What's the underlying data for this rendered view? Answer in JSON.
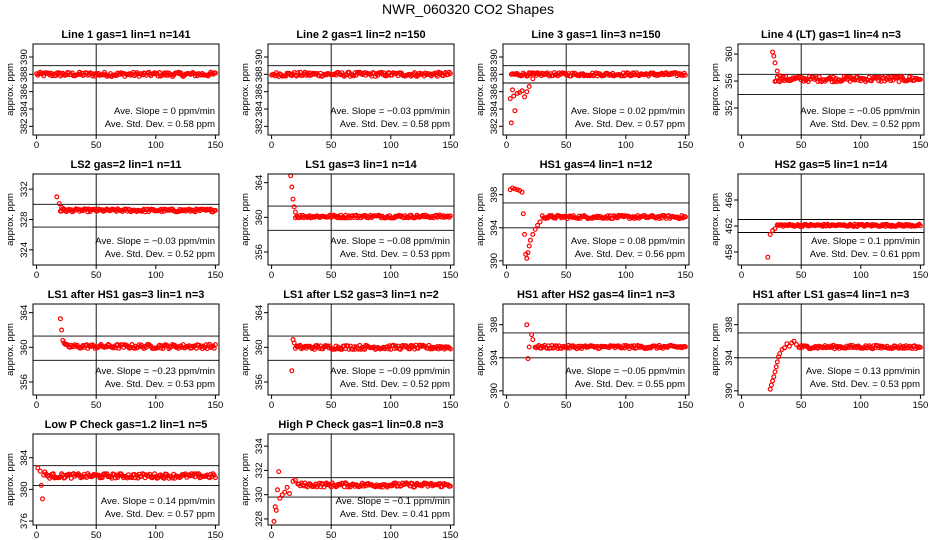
{
  "figure": {
    "title": "NWR_060320  CO2 Shapes"
  },
  "chart_data": [
    {
      "type": "scatter",
      "title": "Line 1 gas=1 lin=1 n=141",
      "ylabel": "approx. ppm",
      "xlim": [
        -3,
        153
      ],
      "ylim": [
        381,
        391.5
      ],
      "xticks": [
        0,
        50,
        100,
        150
      ],
      "yticks": [
        382,
        384,
        386,
        388,
        390
      ],
      "band": [
        387,
        389
      ],
      "vline": 50,
      "slope_text": "Ave. Slope =  0  ppm/min",
      "sd_text": "Ave. Std. Dev. =  0.58  ppm",
      "x_range": [
        0,
        150
      ],
      "level": 388,
      "initial": [],
      "noise": 0.25
    },
    {
      "type": "scatter",
      "title": "Line 2 gas=1 lin=2 n=150",
      "ylabel": "approx. ppm",
      "xlim": [
        -3,
        153
      ],
      "ylim": [
        381,
        391.5
      ],
      "xticks": [
        0,
        50,
        100,
        150
      ],
      "yticks": [
        382,
        384,
        386,
        388,
        390
      ],
      "band": [
        387,
        389
      ],
      "vline": 50,
      "slope_text": "Ave. Slope = −0.03  ppm/min",
      "sd_text": "Ave. Std. Dev. =  0.58  ppm",
      "x_range": [
        0,
        150
      ],
      "level": 388,
      "initial": [],
      "noise": 0.25
    },
    {
      "type": "scatter",
      "title": "Line 3 gas=1 lin=3 n=150",
      "ylabel": "approx. ppm",
      "xlim": [
        -3,
        153
      ],
      "ylim": [
        381,
        391.5
      ],
      "xticks": [
        0,
        50,
        100,
        150
      ],
      "yticks": [
        382,
        384,
        386,
        388,
        390
      ],
      "band": [
        387,
        389
      ],
      "vline": 50,
      "slope_text": "Ave. Slope =  0.02  ppm/min",
      "sd_text": "Ave. Std. Dev. =  0.57  ppm",
      "x_range": [
        4,
        150
      ],
      "level": 388,
      "initial": [
        [
          3,
          385.2
        ],
        [
          4,
          382.4
        ],
        [
          5,
          386.2
        ],
        [
          6,
          385.5
        ],
        [
          7,
          383.8
        ],
        [
          9,
          385.8
        ],
        [
          11,
          385.9
        ],
        [
          13,
          386.1
        ],
        [
          15,
          385.4
        ],
        [
          17,
          386.0
        ],
        [
          19,
          386.6
        ],
        [
          22,
          387.5
        ],
        [
          25,
          387.9
        ]
      ],
      "noise": 0.2
    },
    {
      "type": "scatter",
      "title": "Line 4 (LT) gas=1 lin=4 n=3",
      "ylabel": "approx. ppm",
      "xlim": [
        -3,
        153
      ],
      "ylim": [
        348,
        361.5
      ],
      "xticks": [
        0,
        50,
        100,
        150
      ],
      "yticks": [
        352,
        356,
        360
      ],
      "band": [
        354,
        357
      ],
      "vline": 50,
      "slope_text": "Ave. Slope = −0.05  ppm/min",
      "sd_text": "Ave. Std. Dev. =  0.52  ppm",
      "x_range": [
        28,
        150
      ],
      "level": 356.3,
      "initial": [
        [
          26,
          360.3
        ],
        [
          27,
          359.7
        ],
        [
          28,
          358.7
        ],
        [
          30,
          357.5
        ],
        [
          32,
          356.8
        ]
      ],
      "noise": 0.4
    },
    {
      "type": "scatter",
      "title": "LS2 gas=2 lin=1 n=11",
      "ylabel": "approx. ppm",
      "xlim": [
        -3,
        153
      ],
      "ylim": [
        322,
        334
      ],
      "xticks": [
        0,
        50,
        100,
        150
      ],
      "yticks": [
        324,
        328,
        332
      ],
      "band": [
        327,
        330
      ],
      "vline": 50,
      "slope_text": "Ave. Slope = −0.03  ppm/min",
      "sd_text": "Ave. Std. Dev. =  0.52  ppm",
      "x_range": [
        20,
        150
      ],
      "level": 329.2,
      "initial": [
        [
          17,
          331.0
        ],
        [
          19,
          330.1
        ],
        [
          21,
          329.6
        ],
        [
          23,
          329.4
        ]
      ],
      "noise": 0.2
    },
    {
      "type": "scatter",
      "title": "LS1 gas=3 lin=1 n=14",
      "ylabel": "approx. ppm",
      "xlim": [
        -3,
        153
      ],
      "ylim": [
        354.5,
        365
      ],
      "xticks": [
        0,
        50,
        100,
        150
      ],
      "yticks": [
        356,
        360,
        364
      ],
      "band": [
        358.5,
        361.3
      ],
      "vline": 50,
      "slope_text": "Ave. Slope = −0.08  ppm/min",
      "sd_text": "Ave. Std. Dev. =  0.53  ppm",
      "x_range": [
        20,
        150
      ],
      "level": 360.1,
      "initial": [
        [
          16,
          364.8
        ],
        [
          17,
          363.5
        ],
        [
          18,
          362.1
        ],
        [
          19,
          361.2
        ],
        [
          20,
          360.6
        ]
      ],
      "noise": 0.18
    },
    {
      "type": "scatter",
      "title": "HS1 gas=4 lin=1 n=12",
      "ylabel": "approx. ppm",
      "xlim": [
        -3,
        153
      ],
      "ylim": [
        389.5,
        400.5
      ],
      "xticks": [
        0,
        50,
        100,
        150
      ],
      "yticks": [
        390,
        394,
        398
      ],
      "band": [
        394,
        397
      ],
      "vline": 50,
      "slope_text": "Ave. Slope =  0.08  ppm/min",
      "sd_text": "Ave. Std. Dev. =  0.56  ppm",
      "x_range": [
        30,
        150
      ],
      "level": 395.3,
      "initial": [
        [
          3,
          398.6
        ],
        [
          5,
          398.8
        ],
        [
          7,
          398.7
        ],
        [
          9,
          398.6
        ],
        [
          11,
          398.5
        ],
        [
          13,
          398.3
        ],
        [
          14,
          395.7
        ],
        [
          15,
          393.2
        ],
        [
          16,
          390.8
        ],
        [
          17,
          390.3
        ],
        [
          18,
          391.0
        ],
        [
          19,
          391.8
        ],
        [
          20,
          392.5
        ],
        [
          22,
          393.2
        ],
        [
          24,
          393.8
        ],
        [
          26,
          394.3
        ],
        [
          28,
          394.7
        ]
      ],
      "noise": 0.2
    },
    {
      "type": "scatter",
      "title": "HS2 gas=5 lin=1 n=14",
      "ylabel": "approx. ppm",
      "xlim": [
        -3,
        153
      ],
      "ylim": [
        456,
        470
      ],
      "xticks": [
        0,
        50,
        100,
        150
      ],
      "yticks": [
        458,
        462,
        466
      ],
      "band": [
        461,
        463
      ],
      "vline": 50,
      "slope_text": "Ave. Slope =  0.1  ppm/min",
      "sd_text": "Ave. Std. Dev. =  0.61  ppm",
      "x_range": [
        30,
        150
      ],
      "level": 462.1,
      "initial": [
        [
          22,
          457.2
        ],
        [
          24,
          460.7
        ],
        [
          26,
          461.3
        ],
        [
          28,
          461.6
        ]
      ],
      "noise": 0.18
    },
    {
      "type": "scatter",
      "title": "LS1 after HS1 gas=3 lin=1 n=3",
      "ylabel": "approx. ppm",
      "xlim": [
        -3,
        153
      ],
      "ylim": [
        354.5,
        365
      ],
      "xticks": [
        0,
        50,
        100,
        150
      ],
      "yticks": [
        356,
        360,
        364
      ],
      "band": [
        358.5,
        361.3
      ],
      "vline": 50,
      "slope_text": "Ave. Slope = −0.23  ppm/min",
      "sd_text": "Ave. Std. Dev. =  0.53  ppm",
      "x_range": [
        24,
        150
      ],
      "level": 360.1,
      "initial": [
        [
          20,
          363.3
        ],
        [
          21,
          362.0
        ],
        [
          22,
          360.8
        ],
        [
          23,
          360.5
        ]
      ],
      "noise": 0.25
    },
    {
      "type": "scatter",
      "title": "LS1 after LS2 gas=3 lin=1 n=2",
      "ylabel": "approx. ppm",
      "xlim": [
        -3,
        153
      ],
      "ylim": [
        354.5,
        365
      ],
      "xticks": [
        0,
        50,
        100,
        150
      ],
      "yticks": [
        356,
        360,
        364
      ],
      "band": [
        358.5,
        361.3
      ],
      "vline": 50,
      "slope_text": "Ave. Slope = −0.09  ppm/min",
      "sd_text": "Ave. Std. Dev. =  0.52  ppm",
      "x_range": [
        20,
        150
      ],
      "level": 360.0,
      "initial": [
        [
          17,
          357.3
        ],
        [
          18,
          360.9
        ],
        [
          19,
          360.5
        ]
      ],
      "noise": 0.25
    },
    {
      "type": "scatter",
      "title": "HS1 after HS2 gas=4 lin=1 n=3",
      "ylabel": "approx. ppm",
      "xlim": [
        -3,
        153
      ],
      "ylim": [
        389.5,
        400.5
      ],
      "xticks": [
        0,
        50,
        100,
        150
      ],
      "yticks": [
        390,
        394,
        398
      ],
      "band": [
        394,
        397
      ],
      "vline": 50,
      "slope_text": "Ave. Slope = −0.05  ppm/min",
      "sd_text": "Ave. Std. Dev. =  0.55  ppm",
      "x_range": [
        24,
        150
      ],
      "level": 395.3,
      "initial": [
        [
          17,
          398.0
        ],
        [
          18,
          393.9
        ],
        [
          19,
          395.3
        ],
        [
          21,
          396.8
        ],
        [
          22,
          396.2
        ]
      ],
      "noise": 0.2
    },
    {
      "type": "scatter",
      "title": "HS1 after LS1 gas=4 lin=1 n=3",
      "ylabel": "approx. ppm",
      "xlim": [
        -3,
        153
      ],
      "ylim": [
        389.5,
        400.5
      ],
      "xticks": [
        0,
        50,
        100,
        150
      ],
      "yticks": [
        390,
        394,
        398
      ],
      "band": [
        394,
        397
      ],
      "vline": 50,
      "slope_text": "Ave. Slope =  0.13  ppm/min",
      "sd_text": "Ave. Std. Dev. =  0.53  ppm",
      "x_range": [
        48,
        150
      ],
      "level": 395.3,
      "initial": [
        [
          24,
          390.2
        ],
        [
          25,
          390.7
        ],
        [
          26,
          391.2
        ],
        [
          27,
          391.7
        ],
        [
          28,
          392.3
        ],
        [
          29,
          392.9
        ],
        [
          30,
          393.5
        ],
        [
          31,
          394.1
        ],
        [
          32,
          394.5
        ],
        [
          34,
          395.0
        ],
        [
          36,
          395.2
        ],
        [
          38,
          395.7
        ],
        [
          40,
          395.4
        ],
        [
          42,
          395.8
        ],
        [
          44,
          396.0
        ],
        [
          46,
          395.6
        ]
      ],
      "noise": 0.2
    },
    {
      "type": "scatter",
      "title": "Low P Check gas=1.2 lin=1 n=5",
      "ylabel": "approx. ppm",
      "xlim": [
        -3,
        153
      ],
      "ylim": [
        375.5,
        387
      ],
      "xticks": [
        0,
        50,
        100,
        150
      ],
      "yticks": [
        376,
        380,
        384
      ],
      "band": [
        380.5,
        383
      ],
      "vline": 50,
      "slope_text": "Ave. Slope =  0.14  ppm/min",
      "sd_text": "Ave. Std. Dev. =  0.57  ppm",
      "x_range": [
        8,
        150
      ],
      "level": 381.7,
      "initial": [
        [
          1,
          382.7
        ],
        [
          3,
          382.3
        ],
        [
          4,
          380.5
        ],
        [
          5,
          378.8
        ],
        [
          6,
          381.8
        ],
        [
          7,
          382.2
        ]
      ],
      "noise": 0.3
    },
    {
      "type": "scatter",
      "title": "High P Check gas=1 lin=0.8 n=3",
      "ylabel": "approx. ppm",
      "xlim": [
        -3,
        153
      ],
      "ylim": [
        327.5,
        335
      ],
      "xticks": [
        0,
        50,
        100,
        150
      ],
      "yticks": [
        328,
        330,
        332,
        334
      ],
      "band": [
        329.8,
        331.4
      ],
      "vline": 50,
      "slope_text": "Ave. Slope = −0.1  ppm/min",
      "sd_text": "Ave. Std. Dev. =  0.41  ppm",
      "x_range": [
        22,
        150
      ],
      "level": 330.8,
      "initial": [
        [
          2,
          327.8
        ],
        [
          3,
          329.0
        ],
        [
          4,
          328.7
        ],
        [
          5,
          330.4
        ],
        [
          6,
          331.9
        ],
        [
          7,
          329.7
        ],
        [
          9,
          330.0
        ],
        [
          11,
          330.2
        ],
        [
          13,
          330.6
        ],
        [
          15,
          330.1
        ],
        [
          18,
          331.1
        ],
        [
          20,
          331.2
        ]
      ],
      "noise": 0.18
    }
  ]
}
